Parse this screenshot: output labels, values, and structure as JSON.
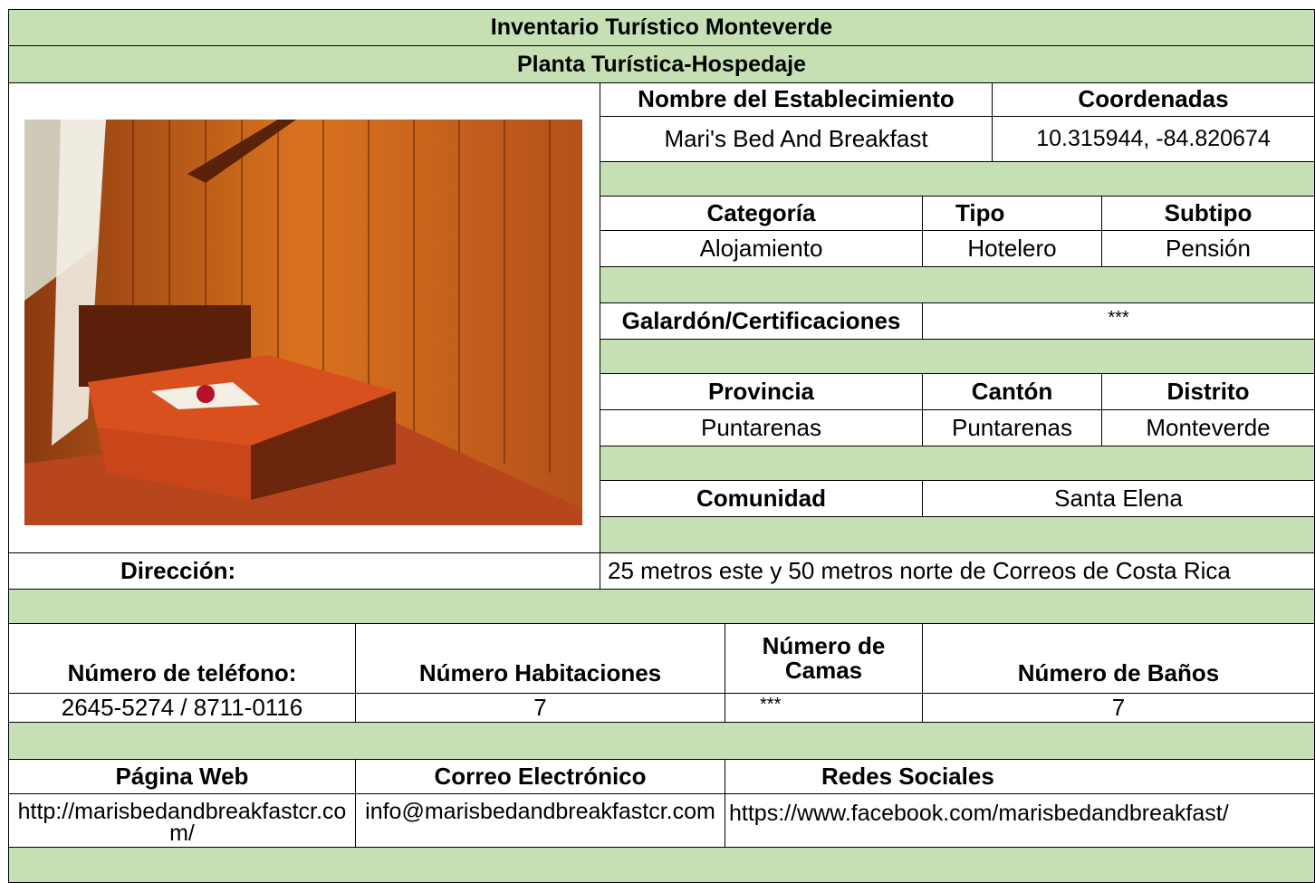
{
  "header": {
    "title": "Inventario Turístico Monteverde",
    "subtitle": "Planta Turística-Hospedaje"
  },
  "establishment": {
    "name_label": "Nombre del Establecimiento",
    "name": "Mari's Bed And Breakfast",
    "coords_label": "Coordenadas",
    "coords": "10.315944, -84.820674"
  },
  "classification": {
    "category_label": "Categoría",
    "category": "Alojamiento",
    "type_label": "Tipo",
    "type": "Hotelero",
    "subtype_label": "Subtipo",
    "subtype": "Pensión"
  },
  "awards": {
    "label": "Galardón/Certificaciones",
    "value": "***"
  },
  "location": {
    "province_label": "Provincia",
    "province": "Puntarenas",
    "canton_label": "Cantón",
    "canton": "Puntarenas",
    "district_label": "Distrito",
    "district": "Monteverde",
    "community_label": "Comunidad",
    "community": "Santa Elena"
  },
  "address": {
    "label": "Dirección:",
    "value": "25 metros este y 50 metros norte de Correos de Costa Rica"
  },
  "capacity": {
    "phone_label": "Número de teléfono:",
    "phone": "2645-5274 / 8711-0116",
    "rooms_label": "Número Habitaciones",
    "rooms": 7,
    "beds_label": "Número de Camas",
    "beds": "***",
    "baths_label": "Número de Baños",
    "baths": 7
  },
  "contact": {
    "web_label": "Página Web",
    "web": "http://marisbedandbreakfastcr.com/",
    "email_label": "Correo Electrónico",
    "email": "info@marisbedandbreakfastcr.com",
    "social_label": "Redes Sociales",
    "social": "https://www.facebook.com/marisbedandbreakfast/"
  }
}
